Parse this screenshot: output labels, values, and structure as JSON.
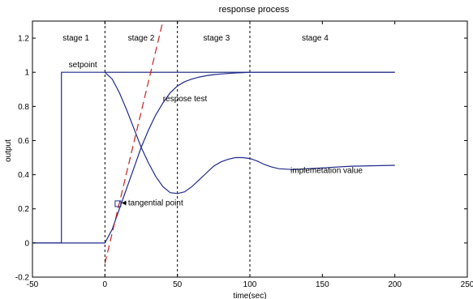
{
  "chart_data": {
    "type": "line",
    "title": "response process",
    "xlabel": "time(sec)",
    "ylabel": "output",
    "xlim": [
      -50,
      250
    ],
    "ylim": [
      -0.2,
      1.3
    ],
    "x_ticks": [
      -50,
      0,
      50,
      100,
      150,
      200,
      250
    ],
    "y_ticks": [
      -0.2,
      0,
      0.2,
      0.4,
      0.6,
      0.8,
      1,
      1.2
    ],
    "grid": false,
    "stage_boundaries": [
      0,
      50,
      100
    ],
    "stage_labels": [
      {
        "text": "stage 1",
        "x": -20
      },
      {
        "text": "stage 2",
        "x": 25
      },
      {
        "text": "stage 3",
        "x": 77
      },
      {
        "text": "stage 4",
        "x": 145
      }
    ],
    "series": [
      {
        "name": "setpoint",
        "color": "#1f2a8c",
        "style": "solid",
        "x": [
          -50,
          -30,
          -30,
          0,
          200
        ],
        "y": [
          0,
          0,
          1,
          1,
          1
        ]
      },
      {
        "name": "respose test",
        "color": "#1f2a8c",
        "style": "solid",
        "x": [
          -50,
          0,
          5,
          10,
          15,
          20,
          25,
          30,
          35,
          40,
          45,
          50,
          55,
          60,
          65,
          70,
          75,
          80,
          85,
          90,
          95,
          100,
          110,
          120,
          150,
          200
        ],
        "y": [
          0,
          0,
          0.08,
          0.2,
          0.32,
          0.44,
          0.56,
          0.66,
          0.75,
          0.82,
          0.88,
          0.92,
          0.945,
          0.96,
          0.972,
          0.98,
          0.986,
          0.99,
          0.993,
          0.996,
          0.998,
          1.0,
          1.0,
          1.0,
          1.0,
          1.0
        ]
      },
      {
        "name": "implemetation value",
        "color": "#1f2a8c",
        "style": "solid",
        "x": [
          0,
          5,
          10,
          15,
          20,
          25,
          30,
          35,
          40,
          45,
          50,
          55,
          60,
          65,
          70,
          75,
          80,
          85,
          90,
          95,
          100,
          105,
          110,
          115,
          120,
          130,
          140,
          150,
          170,
          200
        ],
        "y": [
          1.0,
          0.96,
          0.88,
          0.78,
          0.67,
          0.56,
          0.47,
          0.39,
          0.33,
          0.295,
          0.29,
          0.3,
          0.33,
          0.37,
          0.41,
          0.45,
          0.475,
          0.49,
          0.5,
          0.5,
          0.495,
          0.48,
          0.46,
          0.445,
          0.435,
          0.43,
          0.435,
          0.44,
          0.45,
          0.455
        ]
      },
      {
        "name": "tangent",
        "color": "#cc2222",
        "style": "dashed",
        "x": [
          0,
          40
        ],
        "y": [
          -0.12,
          1.3
        ]
      }
    ],
    "annotations": [
      {
        "text": "setpoint",
        "x": -25,
        "y": 1.03
      },
      {
        "text": "respose test",
        "x": 40,
        "y": 0.83
      },
      {
        "text": "implemetation value",
        "x": 128,
        "y": 0.41
      },
      {
        "text": "tangential point",
        "x": 16,
        "y": 0.22,
        "marker_x": 9,
        "marker_y": 0.23
      }
    ]
  }
}
